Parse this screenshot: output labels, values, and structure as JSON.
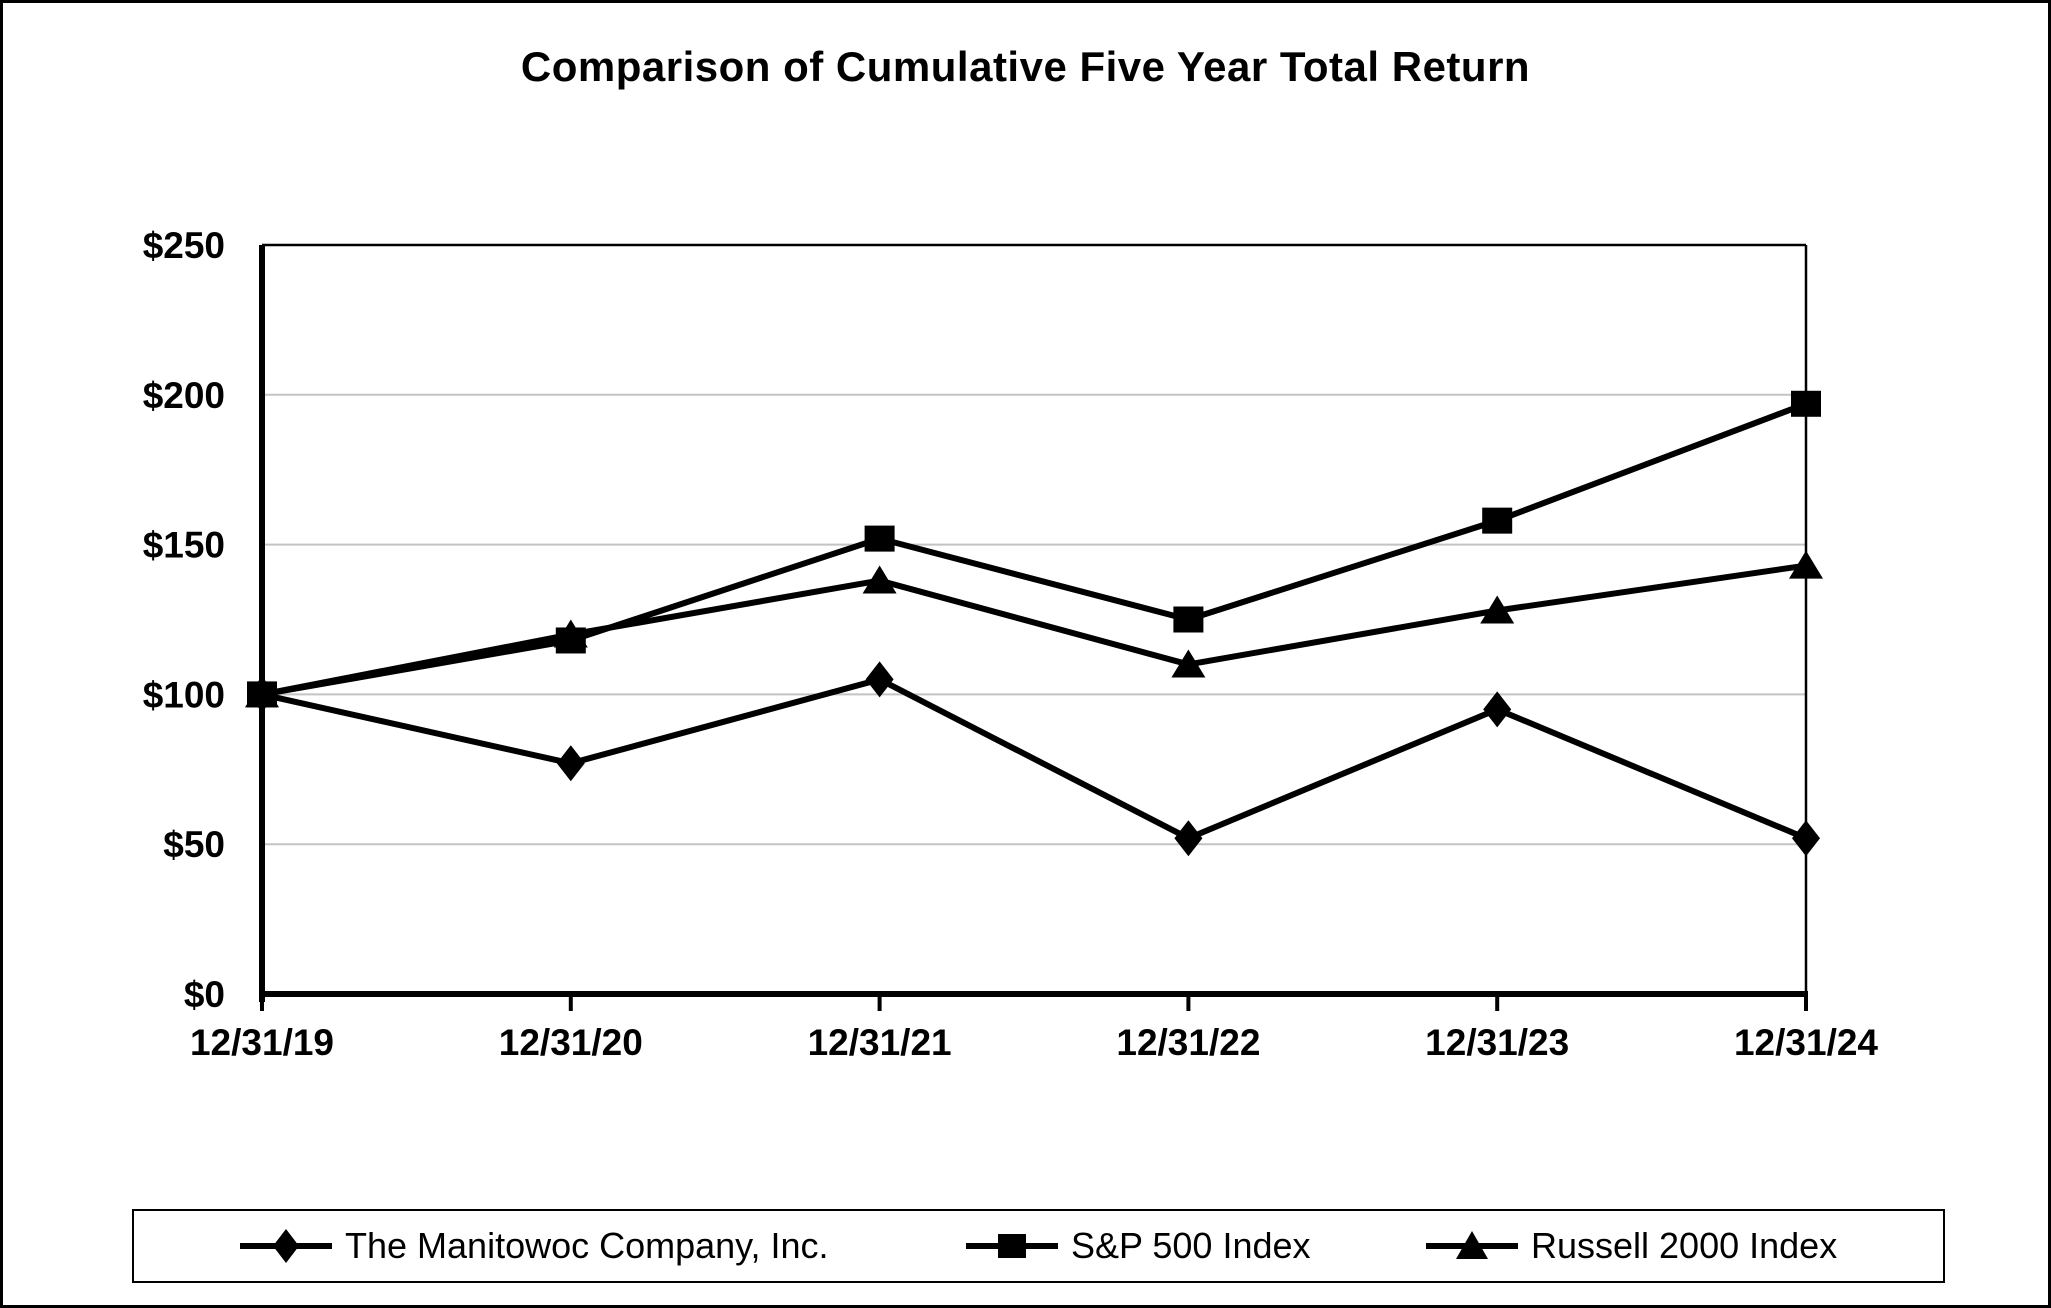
{
  "chart_data": {
    "type": "line",
    "title": "Comparison of Cumulative Five Year Total Return",
    "categories": [
      "12/31/19",
      "12/31/20",
      "12/31/21",
      "12/31/22",
      "12/31/23",
      "12/31/24"
    ],
    "series": [
      {
        "name": "The Manitowoc Company, Inc.",
        "marker": "diamond",
        "values": [
          100,
          77,
          105,
          52,
          95,
          52
        ]
      },
      {
        "name": "S&P 500 Index",
        "marker": "square",
        "values": [
          100,
          118,
          152,
          125,
          158,
          197
        ]
      },
      {
        "name": "Russell 2000 Index",
        "marker": "triangle",
        "values": [
          100,
          120,
          138,
          110,
          128,
          143
        ]
      }
    ],
    "ylim": [
      0,
      250
    ],
    "yticks": [
      0,
      50,
      100,
      150,
      200,
      250
    ],
    "ytick_labels": [
      "$0",
      "$50",
      "$100",
      "$150",
      "$200",
      "$250"
    ],
    "xlabel": "",
    "ylabel": "",
    "grid": true,
    "legend_position": "bottom",
    "colors": {
      "series": "#000000",
      "gridline": "#c3c3c3",
      "border": "#000000",
      "background": "#ffffff"
    }
  }
}
